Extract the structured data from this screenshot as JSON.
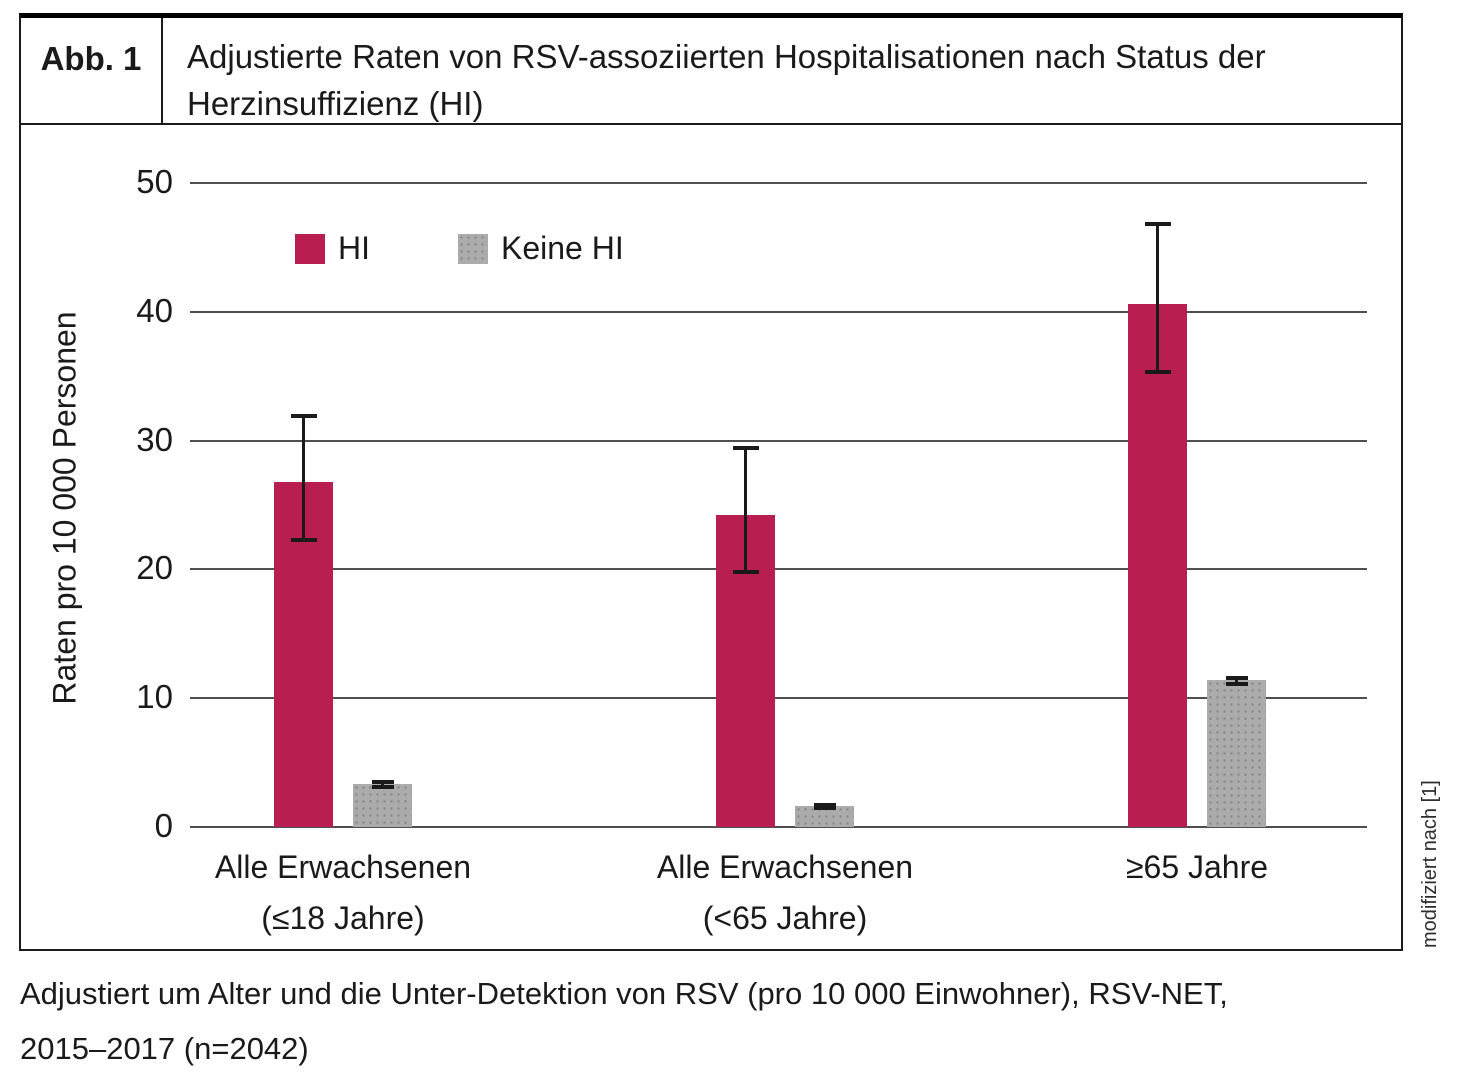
{
  "header": {
    "figure_label": "Abb. 1",
    "title_line1": "Adjustierte Raten von RSV-assoziierten Hospitalisationen nach Status der",
    "title_line2": "Herzinsuffizienz (HI)"
  },
  "chart_data": {
    "type": "bar",
    "title": "Adjustierte Raten von RSV-assoziierten Hospitalisationen nach Status der Herzinsuffizienz (HI)",
    "ylabel": "Raten pro 10 000 Personen",
    "ylim": [
      0,
      50
    ],
    "yticks": [
      0,
      10,
      20,
      30,
      40,
      50
    ],
    "grid": "horizontal",
    "legend_position": "top-left-inside",
    "error_bars": true,
    "categories": [
      {
        "line1": "Alle Erwachsenen",
        "line2": "(≤18 Jahre)"
      },
      {
        "line1": "Alle Erwachsenen",
        "line2": "(<65 Jahre)"
      },
      {
        "line1": "≥65 Jahre",
        "line2": ""
      }
    ],
    "series": [
      {
        "name": "HI",
        "color": "#b91e50",
        "values": [
          26.8,
          24.2,
          40.6
        ],
        "error_low": [
          22.3,
          19.8,
          35.3
        ],
        "error_high": [
          31.9,
          29.4,
          46.8
        ]
      },
      {
        "name": "Keine HI",
        "color": "#ababab",
        "values": [
          3.3,
          1.6,
          11.4
        ],
        "error_low": [
          3.1,
          1.5,
          11.1
        ],
        "error_high": [
          3.5,
          1.7,
          11.6
        ]
      }
    ]
  },
  "caption": {
    "line1": "Adjustiert um Alter und die Unter-Detektion von RSV (pro 10 000 Einwohner), RSV-NET,",
    "line2": "2015–2017 (n=2042)"
  },
  "source_note": "modifiziert nach [1]",
  "colors": {
    "grid": "#4f4f4f",
    "text": "#1a1a1a",
    "border": "#1b1b1b"
  }
}
